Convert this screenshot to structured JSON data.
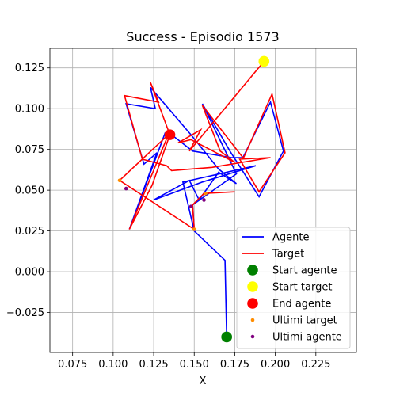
{
  "chart_data": {
    "type": "line",
    "title": "Success - Episodio 1573",
    "xlabel": "X",
    "ylabel": "",
    "xlim": [
      0.061,
      0.25
    ],
    "ylim": [
      -0.0495,
      0.137
    ],
    "xticks": [
      0.075,
      0.1,
      0.125,
      0.15,
      0.175,
      0.2,
      0.225
    ],
    "xtick_labels": [
      "0.075",
      "0.100",
      "0.125",
      "0.150",
      "0.175",
      "0.200",
      "0.225"
    ],
    "yticks": [
      -0.025,
      0.0,
      0.025,
      0.05,
      0.075,
      0.1,
      0.125
    ],
    "ytick_labels": [
      "−0.025",
      "0.000",
      "0.025",
      "0.050",
      "0.075",
      "0.100",
      "0.125"
    ],
    "grid": true,
    "legend_position": "lower-right",
    "series": [
      {
        "name": "Agente",
        "type": "line",
        "color": "#0000ff",
        "points": [
          [
            0.17,
            -0.04
          ],
          [
            0.169,
            0.007
          ],
          [
            0.15,
            0.025
          ],
          [
            0.143,
            0.055
          ],
          [
            0.188,
            0.065
          ],
          [
            0.155,
            0.055
          ],
          [
            0.125,
            0.044
          ],
          [
            0.147,
            0.056
          ],
          [
            0.153,
            0.044
          ],
          [
            0.165,
            0.061
          ],
          [
            0.176,
            0.054
          ],
          [
            0.165,
            0.063
          ],
          [
            0.148,
            0.084
          ],
          [
            0.123,
            0.113
          ],
          [
            0.126,
            0.1
          ],
          [
            0.108,
            0.103
          ],
          [
            0.119,
            0.066
          ],
          [
            0.127,
            0.073
          ],
          [
            0.11,
            0.026
          ],
          [
            0.132,
            0.085
          ],
          [
            0.136,
            0.084
          ],
          [
            0.149,
            0.074
          ],
          [
            0.173,
            0.07
          ],
          [
            0.18,
            0.07
          ],
          [
            0.197,
            0.104
          ],
          [
            0.205,
            0.074
          ],
          [
            0.19,
            0.046
          ],
          [
            0.172,
            0.074
          ],
          [
            0.155,
            0.103
          ],
          [
            0.176,
            0.06
          ],
          [
            0.149,
            0.041
          ],
          [
            0.15,
            0.026
          ]
        ]
      },
      {
        "name": "Target",
        "type": "line",
        "color": "#ff0000",
        "points": [
          [
            0.193,
            0.129
          ],
          [
            0.147,
            0.074
          ],
          [
            0.154,
            0.087
          ],
          [
            0.14,
            0.079
          ],
          [
            0.148,
            0.081
          ],
          [
            0.175,
            0.067
          ],
          [
            0.17,
            0.071
          ],
          [
            0.166,
            0.074
          ],
          [
            0.155,
            0.102
          ],
          [
            0.18,
            0.07
          ],
          [
            0.18,
            0.069
          ],
          [
            0.198,
            0.109
          ],
          [
            0.206,
            0.073
          ],
          [
            0.19,
            0.049
          ],
          [
            0.178,
            0.069
          ],
          [
            0.197,
            0.07
          ],
          [
            0.161,
            0.064
          ],
          [
            0.136,
            0.062
          ],
          [
            0.133,
            0.065
          ],
          [
            0.118,
            0.069
          ],
          [
            0.107,
            0.108
          ],
          [
            0.128,
            0.104
          ],
          [
            0.123,
            0.116
          ],
          [
            0.135,
            0.084
          ],
          [
            0.124,
            0.053
          ],
          [
            0.11,
            0.026
          ],
          [
            0.134,
            0.084
          ],
          [
            0.104,
            0.056
          ],
          [
            0.15,
            0.026
          ],
          [
            0.149,
            0.041
          ],
          [
            0.156,
            0.048
          ],
          [
            0.175,
            0.049
          ]
        ]
      }
    ],
    "markers": [
      {
        "name": "Start agente",
        "x": 0.17,
        "y": -0.04,
        "color": "#008000",
        "size": "large"
      },
      {
        "name": "Start target",
        "x": 0.193,
        "y": 0.129,
        "color": "#ffff00",
        "size": "large"
      },
      {
        "name": "End agente",
        "x": 0.135,
        "y": 0.084,
        "color": "#ff0000",
        "size": "large"
      }
    ],
    "small_points": [
      {
        "name": "Ultimi target",
        "color": "#ff8c00",
        "points": [
          [
            0.104,
            0.056
          ],
          [
            0.136,
            0.084
          ],
          [
            0.15,
            0.026
          ],
          [
            0.157,
            0.048
          ]
        ]
      },
      {
        "name": "Ultimi agente",
        "color": "#800080",
        "points": [
          [
            0.108,
            0.051
          ],
          [
            0.135,
            0.084
          ],
          [
            0.148,
            0.04
          ],
          [
            0.156,
            0.044
          ]
        ]
      }
    ],
    "legend": [
      {
        "label": "Agente",
        "kind": "line",
        "color": "#0000ff"
      },
      {
        "label": "Target",
        "kind": "line",
        "color": "#ff0000"
      },
      {
        "label": "Start agente",
        "kind": "bigdot",
        "color": "#008000"
      },
      {
        "label": "Start target",
        "kind": "bigdot",
        "color": "#ffff00"
      },
      {
        "label": "End agente",
        "kind": "bigdot",
        "color": "#ff0000"
      },
      {
        "label": "Ultimi target",
        "kind": "smalldot",
        "color": "#ff8c00"
      },
      {
        "label": "Ultimi agente",
        "kind": "smalldot",
        "color": "#800080"
      }
    ]
  }
}
